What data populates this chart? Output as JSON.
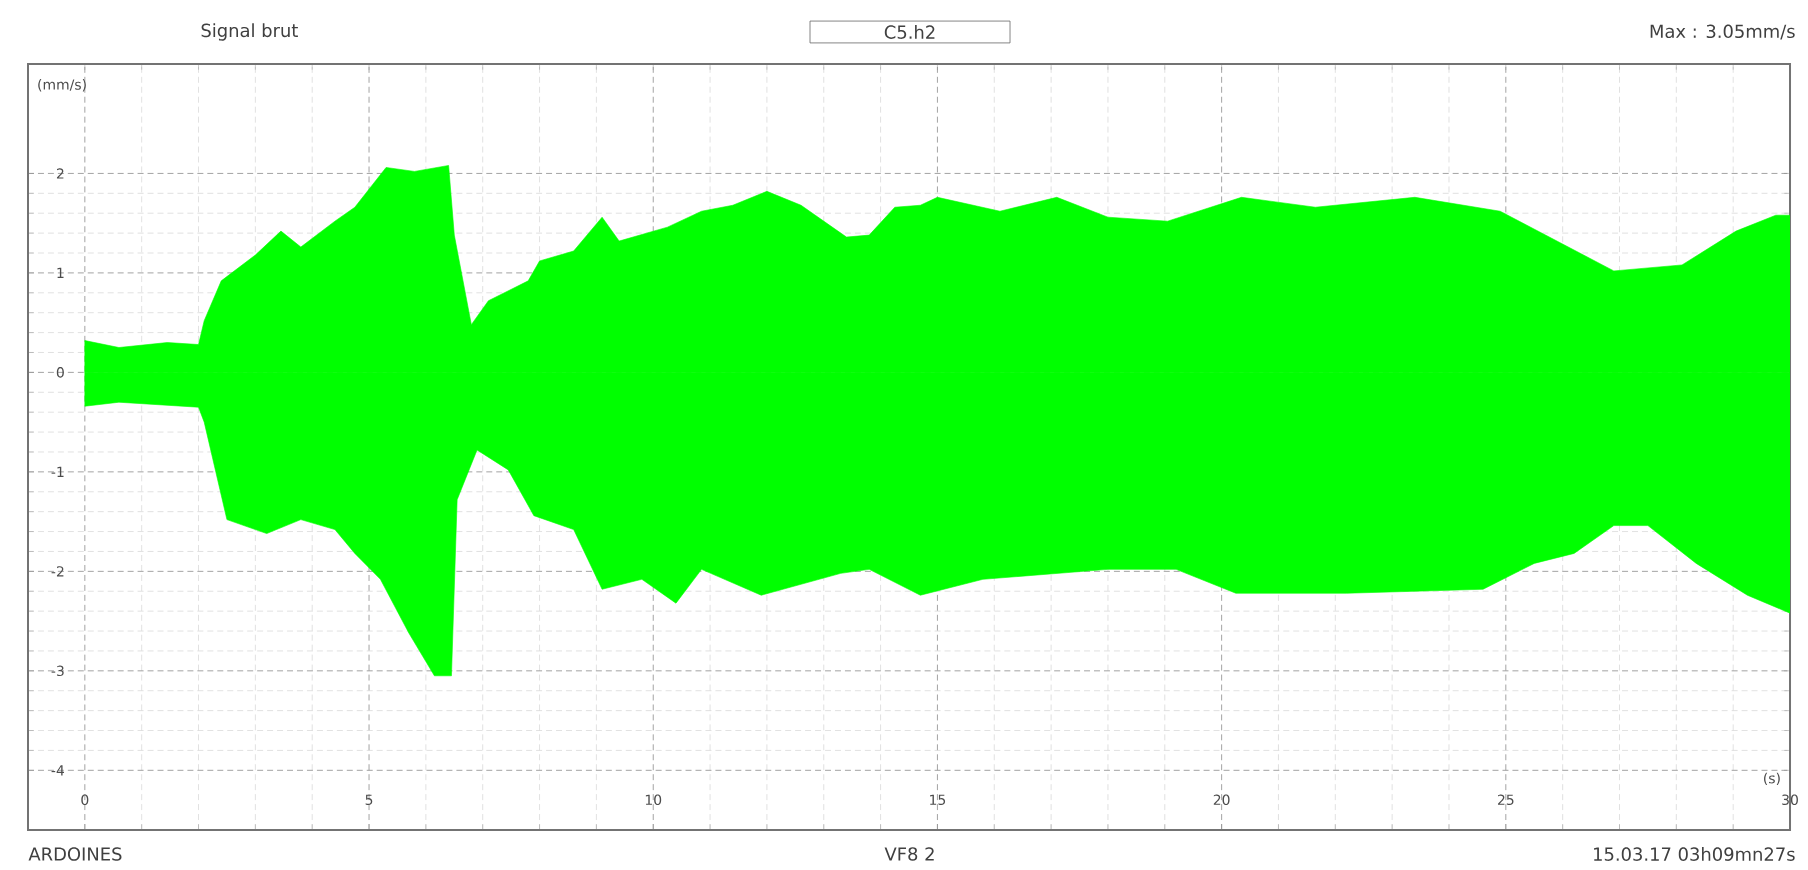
{
  "chart_data": {
    "type": "area",
    "title": "Signal brut",
    "subtitle": "C5.h2",
    "ylabel": "(mm/s)",
    "xlabel": "(s)",
    "annotations": [
      "Max : 3.05mm/s",
      "ARDOINES",
      "VF8 2",
      "15.03.17 03h09mn27s"
    ],
    "xlim": [
      -1,
      30
    ],
    "ylim": [
      -4.6,
      3.1
    ],
    "xticks": [
      0,
      5,
      10,
      15,
      20,
      25,
      30
    ],
    "yticks": [
      -4,
      -3,
      -2,
      -1,
      0,
      1,
      2
    ],
    "grid": true,
    "series": [
      {
        "color": "#00ff00",
        "x": [
          0,
          0.6,
          1.45,
          2.0,
          2.1,
          2.4,
          3.0,
          3.45,
          3.8,
          4.4,
          4.75,
          5.3,
          5.8,
          6.4,
          6.5,
          6.8,
          7.1,
          7.8,
          8.0,
          8.6,
          9.1,
          9.4,
          10.25,
          10.85,
          11.4,
          12.0,
          12.6,
          13.4,
          13.8,
          14.25,
          14.7,
          15.0,
          16.1,
          17.1,
          18.0,
          19.05,
          20.35,
          21.65,
          23.4,
          24.9,
          25.7,
          26.9,
          28.1,
          29.05,
          29.75,
          30
        ],
        "values": [
          0.32,
          0.25,
          0.3,
          0.28,
          0.52,
          0.92,
          1.18,
          1.42,
          1.26,
          1.52,
          1.66,
          2.06,
          2.02,
          2.08,
          1.38,
          0.48,
          0.72,
          0.92,
          1.12,
          1.22,
          1.56,
          1.32,
          1.46,
          1.62,
          1.68,
          1.82,
          1.68,
          1.36,
          1.38,
          1.66,
          1.68,
          1.76,
          1.62,
          1.76,
          1.56,
          1.52,
          1.76,
          1.66,
          1.76,
          1.62,
          1.38,
          1.02,
          1.08,
          1.42,
          1.58,
          1.58
        ]
      },
      {
        "color": "#00ff00",
        "x": [
          0,
          0.6,
          2.0,
          2.1,
          2.5,
          3.2,
          3.8,
          4.4,
          4.75,
          5.2,
          5.7,
          6.15,
          6.45,
          6.55,
          6.9,
          7.45,
          7.9,
          8.6,
          9.1,
          9.8,
          10.4,
          10.85,
          11.9,
          13.3,
          13.8,
          14.7,
          15.8,
          18.0,
          19.2,
          20.25,
          22.2,
          24.6,
          25.5,
          26.2,
          26.9,
          27.5,
          28.35,
          29.25,
          30
        ],
        "values": [
          -0.34,
          -0.3,
          -0.35,
          -0.5,
          -1.48,
          -1.62,
          -1.48,
          -1.58,
          -1.82,
          -2.08,
          -2.62,
          -3.05,
          -3.05,
          -1.28,
          -0.78,
          -0.98,
          -1.44,
          -1.58,
          -2.18,
          -2.08,
          -2.32,
          -1.98,
          -2.24,
          -2.02,
          -1.98,
          -2.24,
          -2.08,
          -1.98,
          -1.98,
          -2.22,
          -2.22,
          -2.18,
          -1.92,
          -1.82,
          -1.54,
          -1.54,
          -1.92,
          -2.24,
          -2.42
        ]
      }
    ]
  }
}
